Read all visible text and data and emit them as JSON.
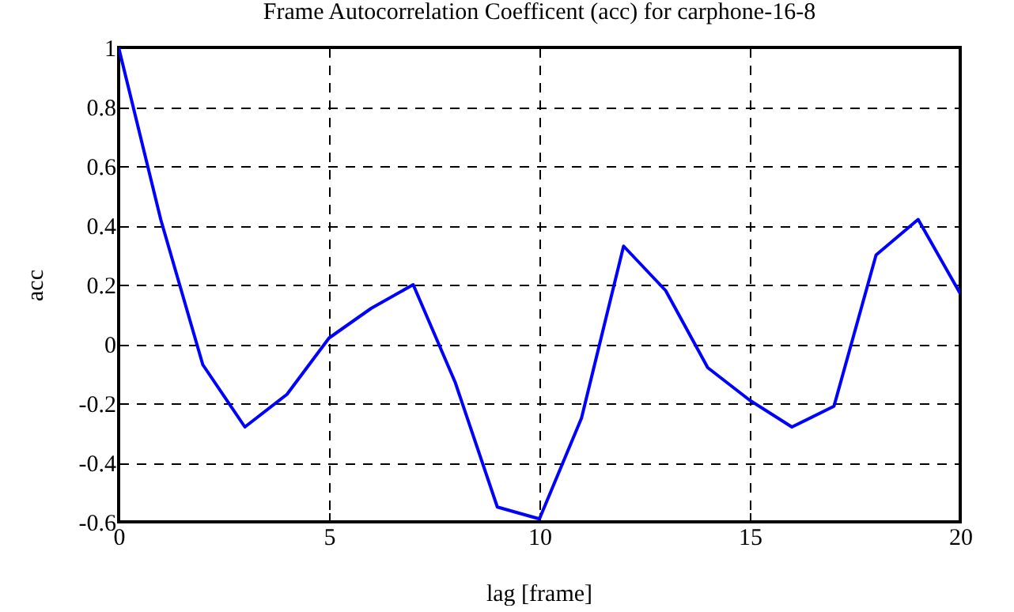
{
  "chart_data": {
    "type": "line",
    "title": "Frame Autocorrelation Coefficent (acc) for carphone-16-8",
    "xlabel": "lag [frame]",
    "ylabel": "acc",
    "x": [
      0,
      1,
      2,
      3,
      4,
      5,
      6,
      7,
      8,
      9,
      10,
      11,
      12,
      13,
      14,
      15,
      16,
      17,
      18,
      19,
      20
    ],
    "series": [
      {
        "color": "#0000ff",
        "values": [
          1,
          0.42,
          -0.07,
          -0.28,
          -0.17,
          0.02,
          0.12,
          0.2,
          -0.13,
          -0.55,
          -0.59,
          -0.25,
          0.33,
          0.18,
          -0.08,
          -0.19,
          -0.28,
          -0.21,
          0.3,
          0.42,
          0.17
        ]
      }
    ],
    "xlim": [
      0,
      20
    ],
    "xticks": [
      0,
      5,
      10,
      15,
      20
    ],
    "ylim": [
      -0.6,
      1
    ],
    "yticks": [
      -0.6,
      -0.4,
      -0.2,
      0,
      0.2,
      0.4,
      0.6,
      0.8,
      1
    ],
    "grid": true,
    "line_style": "solid",
    "marker": "none"
  }
}
